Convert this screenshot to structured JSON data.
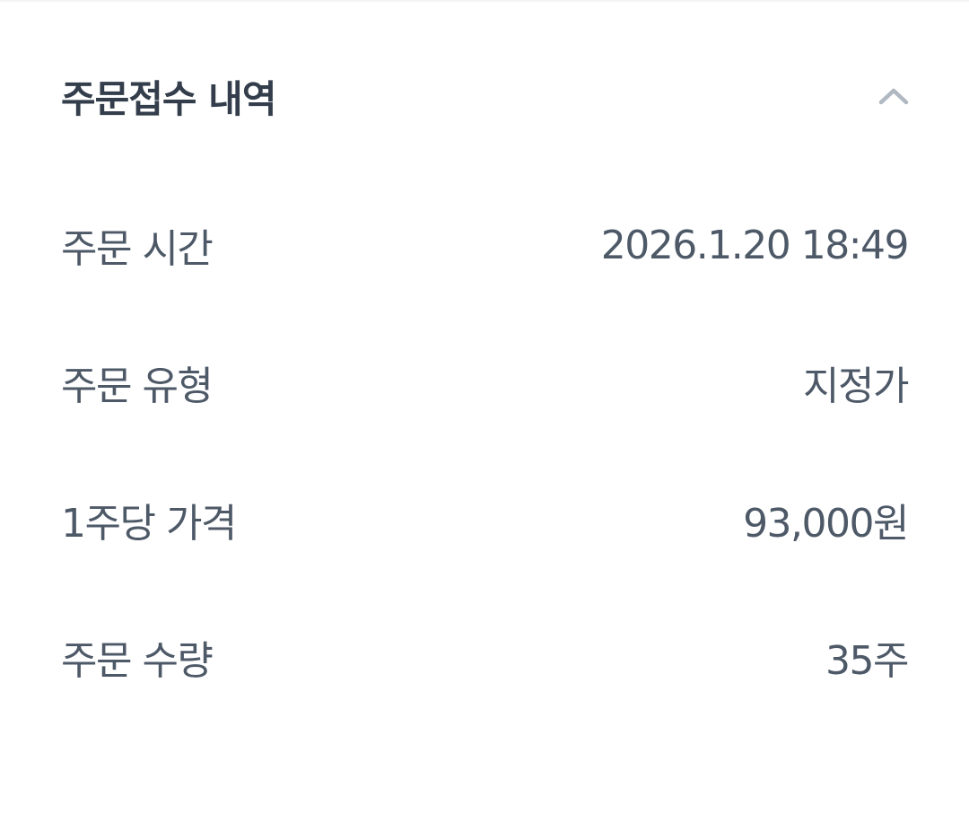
{
  "section": {
    "title": "주문접수 내역",
    "toggle_icon": "chevron-up-icon",
    "rows": [
      {
        "label": "주문 시간",
        "value": "2026.1.20 18:49"
      },
      {
        "label": "주문 유형",
        "value": "지정가"
      },
      {
        "label": "1주당 가격",
        "value": "93,000원"
      },
      {
        "label": "주문 수량",
        "value": "35주"
      }
    ]
  },
  "colors": {
    "title": "#333d4b",
    "text": "#4e5968",
    "icon": "#b0b8c1"
  }
}
